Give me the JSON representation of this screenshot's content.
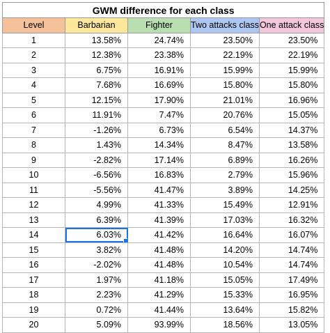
{
  "title": "GWM difference for each class",
  "columns": [
    {
      "label": "Level",
      "color": "#f4c19a"
    },
    {
      "label": "Barbarian",
      "color": "#fce79a"
    },
    {
      "label": "Fighter",
      "color": "#b9dfb0"
    },
    {
      "label": "Two attacks class",
      "color": "#aec7f2"
    },
    {
      "label": "One attack class",
      "color": "#f3c6dc"
    }
  ],
  "rows": [
    [
      "1",
      "13.58%",
      "24.74%",
      "23.50%",
      "23.50%"
    ],
    [
      "2",
      "12.38%",
      "23.38%",
      "22.19%",
      "22.19%"
    ],
    [
      "3",
      "6.75%",
      "16.91%",
      "15.99%",
      "15.99%"
    ],
    [
      "4",
      "7.68%",
      "16.69%",
      "15.80%",
      "15.80%"
    ],
    [
      "5",
      "12.15%",
      "17.90%",
      "21.01%",
      "16.96%"
    ],
    [
      "6",
      "11.91%",
      "7.47%",
      "20.76%",
      "15.05%"
    ],
    [
      "7",
      "-1.26%",
      "6.73%",
      "6.54%",
      "14.37%"
    ],
    [
      "8",
      "1.43%",
      "14.34%",
      "8.47%",
      "13.58%"
    ],
    [
      "9",
      "-2.82%",
      "17.14%",
      "6.89%",
      "16.26%"
    ],
    [
      "10",
      "-6.56%",
      "16.83%",
      "2.79%",
      "15.96%"
    ],
    [
      "11",
      "-5.56%",
      "41.47%",
      "3.89%",
      "14.25%"
    ],
    [
      "12",
      "4.99%",
      "41.33%",
      "15.49%",
      "12.91%"
    ],
    [
      "13",
      "6.39%",
      "41.39%",
      "17.03%",
      "16.32%"
    ],
    [
      "14",
      "6.03%",
      "41.42%",
      "16.64%",
      "16.07%"
    ],
    [
      "15",
      "3.82%",
      "41.48%",
      "14.20%",
      "14.74%"
    ],
    [
      "16",
      "-2.02%",
      "41.48%",
      "10.54%",
      "14.74%"
    ],
    [
      "17",
      "1.97%",
      "41.18%",
      "15.05%",
      "17.49%"
    ],
    [
      "18",
      "2.23%",
      "41.29%",
      "15.33%",
      "16.95%"
    ],
    [
      "19",
      "0.72%",
      "41.44%",
      "13.64%",
      "15.82%"
    ],
    [
      "20",
      "5.09%",
      "93.99%",
      "18.56%",
      "13.05%"
    ]
  ],
  "selected_cell": {
    "row": 14,
    "column": "Barbarian",
    "accent": "#1a73e8"
  }
}
